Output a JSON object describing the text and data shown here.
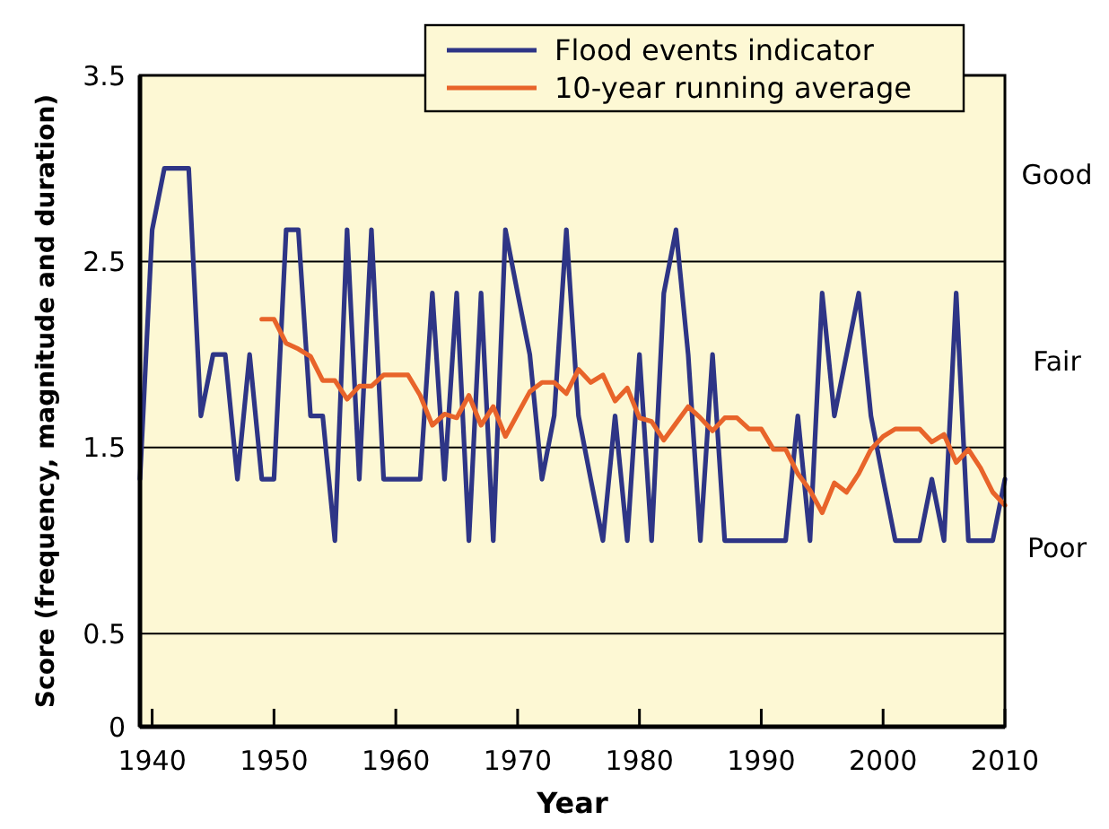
{
  "chart_data": {
    "type": "line",
    "xlabel": "Year",
    "ylabel": "Score (frequency, magnitude and duration)",
    "xlim": [
      1939,
      2010
    ],
    "xticks": [
      1940,
      1950,
      1960,
      1970,
      1980,
      1990,
      2000,
      2010
    ],
    "ylim": [
      0,
      3.5
    ],
    "yticks": [
      0,
      0.5,
      1.5,
      2.5,
      3.5
    ],
    "grid": "y",
    "legend": "top",
    "annotations": [
      "Good",
      "Fair",
      "Poor"
    ],
    "series": [
      {
        "name": "Flood events indicator",
        "color": "#2e3586",
        "x": [
          1939,
          1940,
          1941,
          1942,
          1943,
          1944,
          1945,
          1946,
          1947,
          1948,
          1949,
          1950,
          1951,
          1952,
          1953,
          1954,
          1955,
          1956,
          1957,
          1958,
          1959,
          1960,
          1961,
          1962,
          1963,
          1964,
          1965,
          1966,
          1967,
          1968,
          1969,
          1970,
          1971,
          1972,
          1973,
          1974,
          1975,
          1976,
          1977,
          1978,
          1979,
          1980,
          1981,
          1982,
          1983,
          1984,
          1985,
          1986,
          1987,
          1988,
          1989,
          1990,
          1991,
          1992,
          1993,
          1994,
          1995,
          1996,
          1997,
          1998,
          1999,
          2000,
          2001,
          2002,
          2003,
          2004,
          2005,
          2006,
          2007,
          2008,
          2009,
          2010
        ],
        "values": [
          1.33,
          2.67,
          3,
          3,
          3,
          1.67,
          2,
          2,
          1.33,
          2,
          1.33,
          1.33,
          2.67,
          2.67,
          1.67,
          1.67,
          1,
          2.67,
          1.33,
          2.67,
          1.33,
          1.33,
          1.33,
          1.33,
          2.33,
          1.33,
          2.33,
          1,
          2.33,
          1,
          2.67,
          2.33,
          2,
          1.33,
          1.67,
          2.67,
          1.67,
          1.33,
          1,
          1.67,
          1,
          2,
          1,
          2.33,
          2.67,
          2,
          1,
          2,
          1,
          1,
          1,
          1,
          1,
          1,
          1.67,
          1,
          2.33,
          1.67,
          2,
          2.33,
          1.67,
          1.33,
          1,
          1,
          1,
          1.33,
          1,
          2.33,
          1,
          1,
          1,
          1.33
        ]
      },
      {
        "name": "10-year running average",
        "color": "#e8642a",
        "x": [
          1949,
          1950,
          1951,
          1952,
          1953,
          1954,
          1955,
          1956,
          1957,
          1958,
          1959,
          1960,
          1961,
          1962,
          1963,
          1964,
          1965,
          1966,
          1967,
          1968,
          1969,
          1970,
          1971,
          1972,
          1973,
          1974,
          1975,
          1976,
          1977,
          1978,
          1979,
          1980,
          1981,
          1982,
          1983,
          1984,
          1985,
          1986,
          1987,
          1988,
          1989,
          1990,
          1991,
          1992,
          1993,
          1994,
          1995,
          1996,
          1997,
          1998,
          1999,
          2000,
          2001,
          2002,
          2003,
          2004,
          2005,
          2006,
          2007,
          2008,
          2009,
          2010
        ],
        "values": [
          2.19,
          2.19,
          2.06,
          2.03,
          1.99,
          1.86,
          1.86,
          1.76,
          1.83,
          1.83,
          1.89,
          1.89,
          1.89,
          1.78,
          1.62,
          1.68,
          1.66,
          1.78,
          1.62,
          1.72,
          1.56,
          1.68,
          1.8,
          1.85,
          1.85,
          1.79,
          1.92,
          1.85,
          1.89,
          1.75,
          1.82,
          1.66,
          1.64,
          1.54,
          1.63,
          1.72,
          1.66,
          1.59,
          1.66,
          1.66,
          1.6,
          1.6,
          1.49,
          1.49,
          1.36,
          1.27,
          1.15,
          1.31,
          1.26,
          1.36,
          1.49,
          1.56,
          1.6,
          1.6,
          1.6,
          1.53,
          1.57,
          1.42,
          1.49,
          1.39,
          1.26,
          1.19
        ]
      }
    ]
  }
}
